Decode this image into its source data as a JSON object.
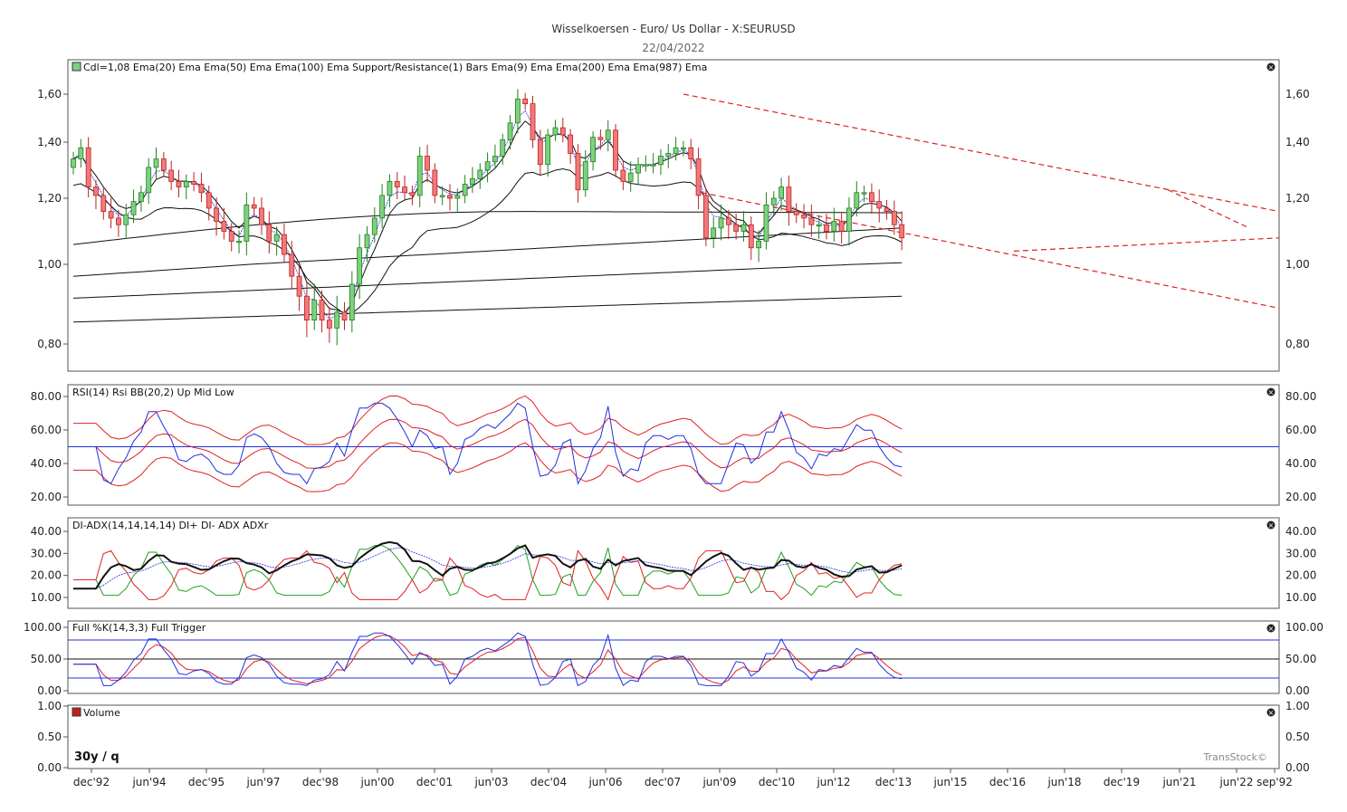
{
  "header": {
    "title": "Wisselkoersen - Euro/ Us Dollar - X:SEURUSD",
    "date": "22/04/2022"
  },
  "colors": {
    "up": "#7fd07f",
    "down": "#f07a7a",
    "border": "#333333",
    "red": "#e02020",
    "blue": "#2030e0",
    "green": "#20a020",
    "black": "#111111"
  },
  "panels": {
    "price": {
      "legend": [
        "Cdl=1,08",
        "Ema(20)",
        "Ema",
        "Ema(50)",
        "Ema",
        "Ema(100)",
        "Ema",
        "Support/Resistance(1)",
        "Bars",
        "Ema(9)",
        "Ema",
        "Ema(200)",
        "Ema",
        "Ema(987)",
        "Ema"
      ],
      "yticks": [
        "1,60",
        "1,40",
        "1,20",
        "1,00",
        "0,80"
      ],
      "ytick_values": [
        1.6,
        1.4,
        1.2,
        1.0,
        0.8
      ]
    },
    "rsi": {
      "legend": [
        "RSI(14)",
        "Rsi",
        "BB(20,2)",
        "Up",
        "Mid",
        "Low"
      ],
      "yticks": [
        "80.00",
        "60.00",
        "40.00",
        "20.00"
      ],
      "ytick_values": [
        80,
        60,
        40,
        20
      ]
    },
    "adx": {
      "legend": [
        "DI-ADX(14,14,14,14)",
        "DI+",
        "DI-",
        "ADX",
        "ADXr"
      ],
      "yticks": [
        "40.00",
        "30.00",
        "20.00",
        "10.00"
      ],
      "ytick_values": [
        40,
        30,
        20,
        10
      ]
    },
    "stoch": {
      "legend": [
        "Full  %K(14,3,3)",
        "Full",
        "Trigger"
      ],
      "yticks": [
        "100.00",
        "50.00",
        "0.00"
      ],
      "ytick_values": [
        100,
        50,
        0
      ]
    },
    "volume": {
      "legend": [
        "Volume"
      ],
      "yticks": [
        "1.00",
        "0.50",
        "0.00"
      ],
      "ytick_values": [
        1,
        0.5,
        0
      ],
      "period_label": "30y / q",
      "brand": "TransStock©"
    }
  },
  "x_axis": {
    "labels": [
      "dec'92",
      "jun'94",
      "dec'95",
      "jun'97",
      "dec'98",
      "jun'00",
      "dec'01",
      "jun'03",
      "dec'04",
      "jun'06",
      "dec'07",
      "jun'09",
      "dec'10",
      "jun'12",
      "dec'13",
      "jun'15",
      "dec'16",
      "jun'18",
      "dec'19",
      "jun'21",
      "jun'22",
      "sep'92"
    ]
  },
  "chart_data": {
    "type": "candlestick",
    "instrument": "X:SEURUSD",
    "period": "quarterly",
    "closes": [
      1.34,
      1.38,
      1.24,
      1.21,
      1.16,
      1.14,
      1.12,
      1.15,
      1.19,
      1.22,
      1.31,
      1.34,
      1.3,
      1.26,
      1.24,
      1.26,
      1.25,
      1.22,
      1.17,
      1.13,
      1.1,
      1.07,
      1.07,
      1.18,
      1.17,
      1.12,
      1.07,
      1.09,
      1.03,
      0.97,
      0.92,
      0.86,
      0.91,
      0.86,
      0.84,
      0.88,
      0.86,
      0.95,
      1.05,
      1.09,
      1.14,
      1.21,
      1.26,
      1.24,
      1.22,
      1.21,
      1.35,
      1.3,
      1.21,
      1.21,
      1.2,
      1.21,
      1.25,
      1.27,
      1.3,
      1.33,
      1.35,
      1.41,
      1.48,
      1.58,
      1.56,
      1.41,
      1.32,
      1.43,
      1.46,
      1.43,
      1.36,
      1.23,
      1.33,
      1.42,
      1.41,
      1.45,
      1.3,
      1.26,
      1.29,
      1.32,
      1.32,
      1.32,
      1.35,
      1.36,
      1.38,
      1.38,
      1.34,
      1.21,
      1.08,
      1.11,
      1.14,
      1.12,
      1.1,
      1.12,
      1.05,
      1.07,
      1.18,
      1.2,
      1.24,
      1.16,
      1.15,
      1.14,
      1.12,
      1.12,
      1.1,
      1.13,
      1.1,
      1.17,
      1.22,
      1.22,
      1.19,
      1.17,
      1.16,
      1.12,
      1.08
    ]
  }
}
